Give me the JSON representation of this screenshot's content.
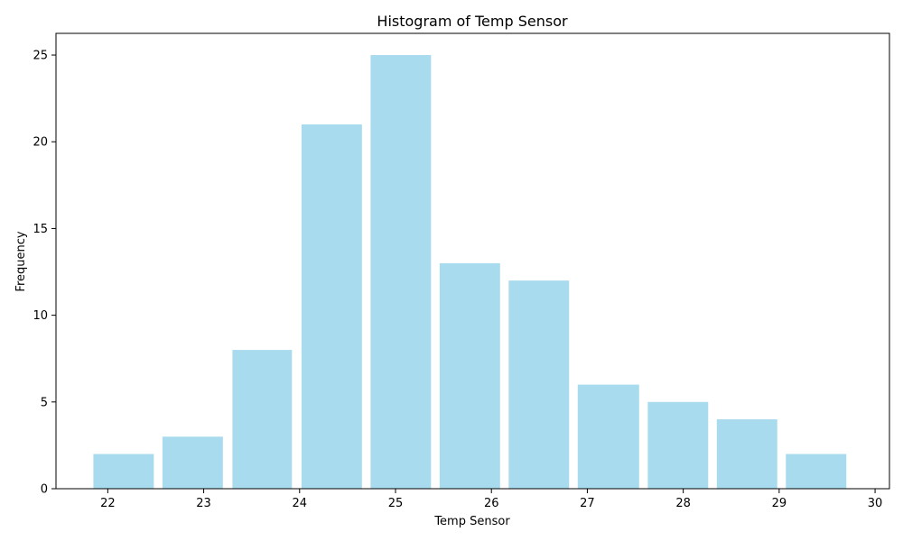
{
  "chart_data": {
    "type": "bar",
    "title": "Histogram of Temp Sensor",
    "xlabel": "Temp Sensor",
    "ylabel": "Frequency",
    "bins": [
      {
        "start": 21.85,
        "end": 22.48,
        "count": 2
      },
      {
        "start": 22.57,
        "end": 23.2,
        "count": 3
      },
      {
        "start": 23.3,
        "end": 23.92,
        "count": 8
      },
      {
        "start": 24.02,
        "end": 24.65,
        "count": 21
      },
      {
        "start": 24.74,
        "end": 25.37,
        "count": 25
      },
      {
        "start": 25.46,
        "end": 26.09,
        "count": 13
      },
      {
        "start": 26.18,
        "end": 26.81,
        "count": 12
      },
      {
        "start": 26.9,
        "end": 27.54,
        "count": 6
      },
      {
        "start": 27.63,
        "end": 28.26,
        "count": 5
      },
      {
        "start": 28.35,
        "end": 28.98,
        "count": 4
      },
      {
        "start": 29.07,
        "end": 29.7,
        "count": 2
      }
    ],
    "xlim": [
      21.46,
      30.15
    ],
    "ylim": [
      0,
      26.25
    ],
    "xticks": [
      22,
      23,
      24,
      25,
      26,
      27,
      28,
      29,
      30
    ],
    "xtick_labels": [
      "22",
      "23",
      "24",
      "25",
      "26",
      "27",
      "28",
      "29",
      "30"
    ],
    "yticks": [
      0,
      5,
      10,
      15,
      20,
      25
    ],
    "ytick_labels": [
      "0",
      "5",
      "10",
      "15",
      "20",
      "25"
    ],
    "bar_color": "#a8dbee",
    "grid": false
  }
}
